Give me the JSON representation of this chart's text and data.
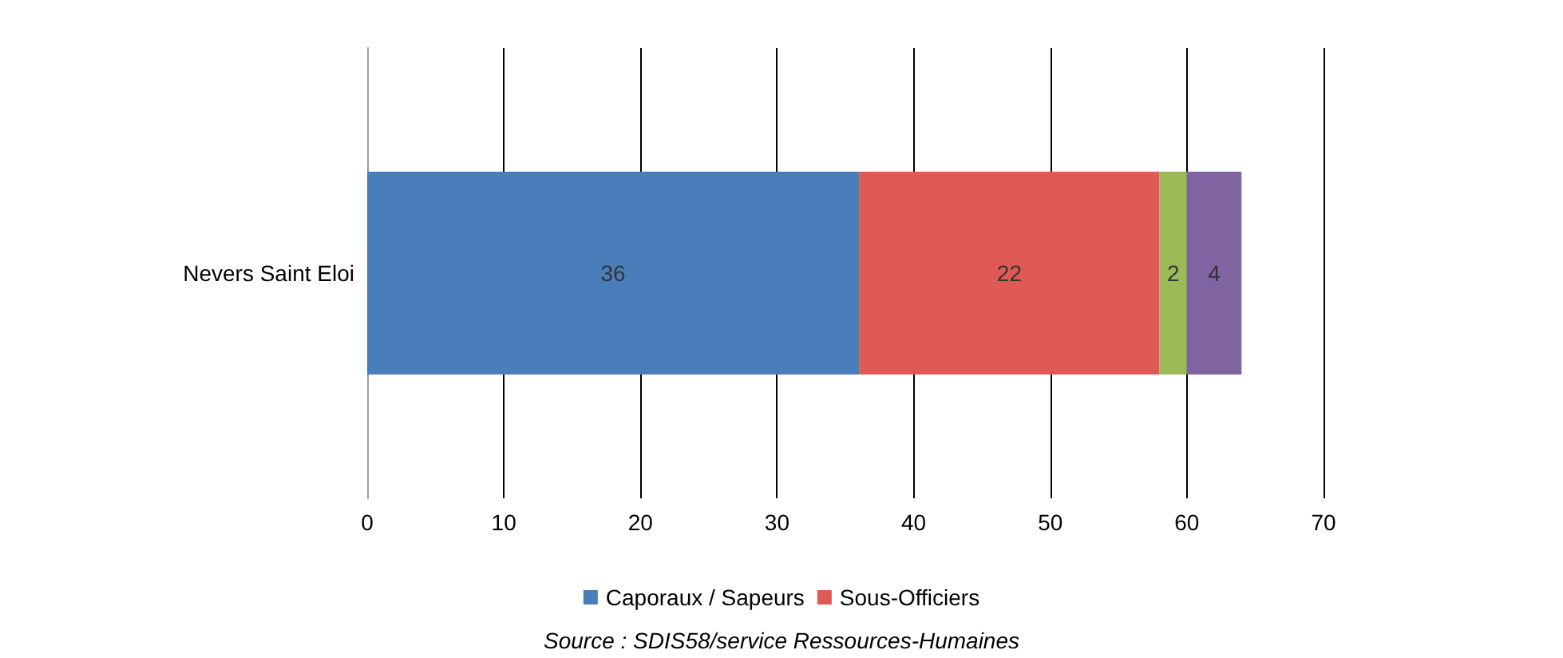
{
  "chart_data": {
    "type": "bar",
    "orientation": "horizontal",
    "stacked": true,
    "categories": [
      "Nevers Saint Eloi"
    ],
    "series": [
      {
        "name": "Caporaux / Sapeurs",
        "color": "#4a7ebb",
        "values": [
          36
        ]
      },
      {
        "name": "Sous-Officiers",
        "color": "#e05a55",
        "values": [
          22
        ]
      },
      {
        "color": "#9bbb59",
        "values": [
          2
        ]
      },
      {
        "color": "#8064a2",
        "values": [
          4
        ]
      }
    ],
    "xlim": [
      0,
      70
    ],
    "xticks": [
      0,
      10,
      20,
      30,
      40,
      50,
      60,
      70
    ],
    "grid": "x",
    "legend": "bottom",
    "data_labels": true,
    "annotations": [
      "Source : SDIS58/service Ressources-Humaines"
    ]
  }
}
